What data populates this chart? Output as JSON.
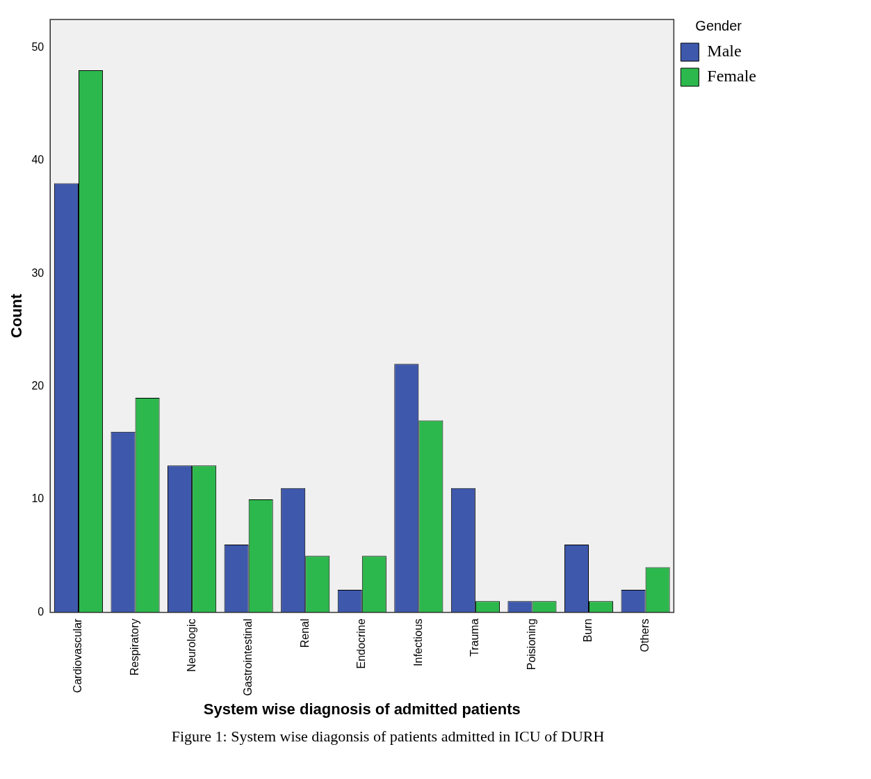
{
  "chart_data": {
    "type": "bar",
    "xlabel": "System wise diagnosis of admitted patients",
    "ylabel": "Count",
    "legend_title": "Gender",
    "categories": [
      "Cardiovascular",
      "Respiratory",
      "Neurologic",
      "Gastrointestinal",
      "Renal",
      "Endocrine",
      "Infectious",
      "Trauma",
      "Poisioning",
      "Burn",
      "Others"
    ],
    "series": [
      {
        "name": "Male",
        "color": "#3e58ac",
        "values": [
          38,
          16,
          13,
          6,
          11,
          2,
          22,
          11,
          1,
          6,
          2
        ]
      },
      {
        "name": "Female",
        "color": "#2db84d",
        "values": [
          48,
          19,
          13,
          10,
          5,
          5,
          17,
          1,
          1,
          1,
          4
        ]
      }
    ],
    "ylim": [
      0,
      52.5
    ],
    "yticks": [
      0,
      10,
      20,
      30,
      40,
      50
    ],
    "grid": false,
    "legend": "top right",
    "annotations": [
      "Figure 1: System wise diagonsis of patients admitted in ICU of DURH"
    ]
  }
}
